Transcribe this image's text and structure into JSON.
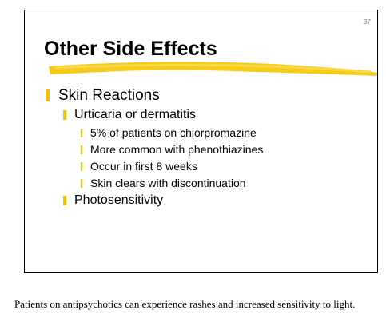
{
  "slide": {
    "number": "37",
    "title": "Other Side Effects",
    "bullets": [
      {
        "text": "Skin Reactions",
        "children": [
          {
            "text": "Urticaria or dermatitis",
            "children": [
              {
                "text": "5% of patients on chlorpromazine"
              },
              {
                "text": "More common with phenothiazines"
              },
              {
                "text": "Occur in first 8 weeks"
              },
              {
                "text": "Skin clears with discontinuation"
              }
            ]
          },
          {
            "text": "Photosensitivity"
          }
        ]
      }
    ]
  },
  "notes": "Patients on antipsychotics can experience rashes and increased sensitivity to light."
}
